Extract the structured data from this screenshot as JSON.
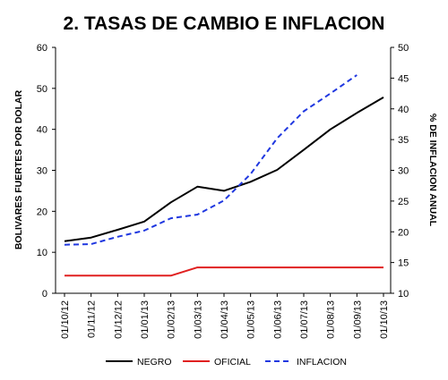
{
  "chart_data": {
    "type": "line",
    "title": "2. TASAS DE CAMBIO E INFLACION",
    "categories": [
      "01/10/12",
      "01/11/12",
      "01/12/12",
      "01/01/13",
      "01/02/13",
      "01/03/13",
      "01/04/13",
      "01/05/13",
      "01/06/13",
      "01/07/13",
      "01/08/13",
      "01/09/13",
      "01/10/13"
    ],
    "ylabel": "BOLIVARES FUERTES POR DOLAR",
    "y2label": "% DE INFLACION ANUAL",
    "ylim": [
      0,
      60
    ],
    "y2lim": [
      10,
      50
    ],
    "yticks": [
      "0",
      "10",
      "20",
      "30",
      "40",
      "50",
      "60"
    ],
    "y2ticks": [
      "10",
      "15",
      "20",
      "25",
      "30",
      "35",
      "40",
      "45",
      "50"
    ],
    "grid": false,
    "legend_position": "bottom",
    "series": [
      {
        "name": "NEGRO",
        "axis": "left",
        "color": "#000000",
        "dash": "solid",
        "values": [
          12.7,
          13.6,
          15.5,
          17.5,
          22.2,
          26.0,
          25.0,
          27.2,
          30.1,
          35.0,
          40.0,
          44.0,
          47.8
        ]
      },
      {
        "name": "OFICIAL",
        "axis": "left",
        "color": "#e02020",
        "dash": "solid",
        "values": [
          4.3,
          4.3,
          4.3,
          4.3,
          4.3,
          6.3,
          6.3,
          6.3,
          6.3,
          6.3,
          6.3,
          6.3,
          6.3
        ]
      },
      {
        "name": "INFLACION",
        "axis": "right",
        "color": "#2038e0",
        "dash": "dashed",
        "values": [
          17.9,
          18.0,
          19.2,
          20.2,
          22.2,
          22.8,
          25.1,
          29.4,
          35.2,
          39.6,
          42.5,
          45.5,
          null
        ]
      }
    ]
  }
}
